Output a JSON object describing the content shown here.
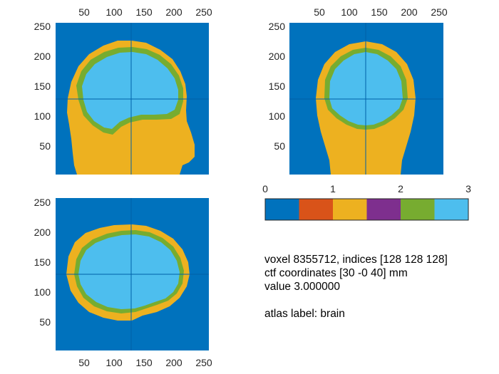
{
  "colors": {
    "background": "#0072BD",
    "scalp": "#EDB120",
    "skull": "#77AC30",
    "brain": "#4DBEEE",
    "crosshair": "#0060A8",
    "colorbar": [
      "#0072BD",
      "#D95319",
      "#EDB120",
      "#7E2F8E",
      "#77AC30",
      "#4DBEEE"
    ]
  },
  "panels": {
    "sagittal": {
      "xticks": [
        "50",
        "100",
        "150",
        "200",
        "250"
      ],
      "yticks": [
        "250",
        "200",
        "150",
        "100",
        "50"
      ]
    },
    "coronal": {
      "xticks": [
        "50",
        "100",
        "150",
        "200",
        "250"
      ],
      "yticks": [
        "250",
        "200",
        "150",
        "100",
        "50"
      ]
    },
    "axial": {
      "xticks": [
        "50",
        "100",
        "150",
        "200",
        "250"
      ],
      "yticks": [
        "250",
        "200",
        "150",
        "100",
        "50"
      ]
    }
  },
  "colorbar": {
    "ticks": [
      "0",
      "1",
      "2",
      "3"
    ]
  },
  "info": {
    "line1": "voxel 8355712, indices [128 128 128]",
    "line2": "ctf coordinates [30 -0 40] mm",
    "line3": "value 3.000000",
    "line4": "atlas label: brain"
  }
}
